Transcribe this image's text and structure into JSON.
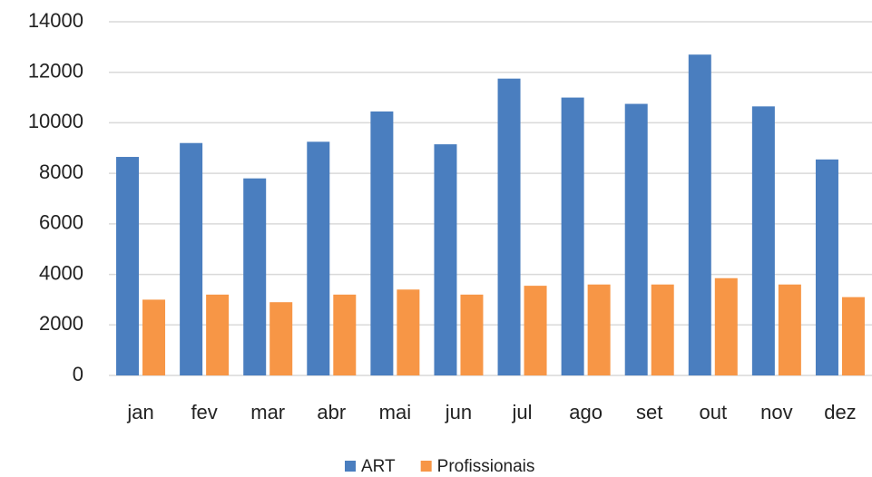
{
  "chart_data": {
    "type": "bar",
    "categories": [
      "jan",
      "fev",
      "mar",
      "abr",
      "mai",
      "jun",
      "jul",
      "ago",
      "set",
      "out",
      "nov",
      "dez"
    ],
    "series": [
      {
        "name": "ART",
        "color": "#4a7ebf",
        "values": [
          8650,
          9200,
          7800,
          9250,
          10450,
          9150,
          11750,
          11000,
          10750,
          12700,
          10650,
          8550
        ]
      },
      {
        "name": "Profissionais",
        "color": "#f79646",
        "values": [
          3000,
          3200,
          2900,
          3200,
          3400,
          3200,
          3550,
          3600,
          3600,
          3850,
          3600,
          3100
        ]
      }
    ],
    "ylim": [
      0,
      14000
    ],
    "yticks": [
      0,
      2000,
      4000,
      6000,
      8000,
      10000,
      12000,
      14000
    ],
    "grid": true,
    "legend": "bottom"
  }
}
